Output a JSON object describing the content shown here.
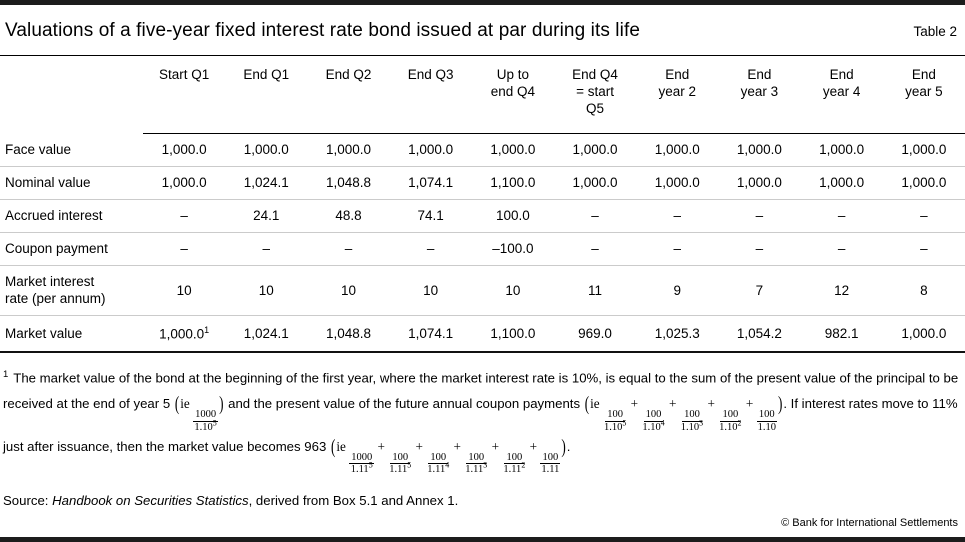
{
  "title": "Valuations of a five-year fixed interest rate bond issued at par during its life",
  "table_label": "Table 2",
  "table": {
    "columns": [
      "",
      "Start Q1",
      "End Q1",
      "End Q2",
      "End Q3",
      "Up to\nend Q4",
      "End Q4\n= start\nQ5",
      "End\nyear 2",
      "End\nyear 3",
      "End\nyear 4",
      "End\nyear 5"
    ],
    "rows": [
      {
        "label": "Face value",
        "cells": [
          "1,000.0",
          "1,000.0",
          "1,000.0",
          "1,000.0",
          "1,000.0",
          "1,000.0",
          "1,000.0",
          "1,000.0",
          "1,000.0",
          "1,000.0"
        ]
      },
      {
        "label": "Nominal value",
        "cells": [
          "1,000.0",
          "1,024.1",
          "1,048.8",
          "1,074.1",
          "1,100.0",
          "1,000.0",
          "1,000.0",
          "1,000.0",
          "1,000.0",
          "1,000.0"
        ]
      },
      {
        "label": "Accrued interest",
        "cells": [
          "–",
          "24.1",
          "48.8",
          "74.1",
          "100.0",
          "–",
          "–",
          "–",
          "–",
          "–"
        ]
      },
      {
        "label": "Coupon payment",
        "cells": [
          "–",
          "–",
          "–",
          "–",
          "–100.0",
          "–",
          "–",
          "–",
          "–",
          "–"
        ]
      },
      {
        "label": "Market interest\nrate (per annum)",
        "tall": true,
        "cells": [
          "10",
          "10",
          "10",
          "10",
          "10",
          "11",
          "9",
          "7",
          "12",
          "8"
        ]
      },
      {
        "label": "Market value",
        "last": true,
        "cells": [
          {
            "v": "1,000.0",
            "sup": "1"
          },
          "1,024.1",
          "1,048.8",
          "1,074.1",
          "1,100.0",
          "969.0",
          "1,025.3",
          "1,054.2",
          "982.1",
          "1,000.0"
        ]
      }
    ]
  },
  "footnote": {
    "marker": "1",
    "segments": [
      {
        "t": "x",
        "v": "The market value of the bond at the beginning of the first year, where the market interest rate is 10%, is equal to the sum of the present value of the principal to be received at the end of year 5 "
      },
      {
        "t": "lp"
      },
      {
        "t": "m",
        "v": "ie "
      },
      {
        "t": "f",
        "n": "1000",
        "d": "1.10",
        "e": "5"
      },
      {
        "t": "rp"
      },
      {
        "t": "x",
        "v": " and the present value of the future annual coupon payments "
      },
      {
        "t": "lp"
      },
      {
        "t": "m",
        "v": "ie "
      },
      {
        "t": "f",
        "n": "100",
        "d": "1.10",
        "e": "5"
      },
      {
        "t": "m",
        "v": " + "
      },
      {
        "t": "f",
        "n": "100",
        "d": "1.10",
        "e": "4"
      },
      {
        "t": "m",
        "v": " + "
      },
      {
        "t": "f",
        "n": "100",
        "d": "1.10",
        "e": "3"
      },
      {
        "t": "m",
        "v": " + "
      },
      {
        "t": "f",
        "n": "100",
        "d": "1.10",
        "e": "2"
      },
      {
        "t": "m",
        "v": " + "
      },
      {
        "t": "f",
        "n": "100",
        "d": "1.10"
      },
      {
        "t": "rp"
      },
      {
        "t": "x",
        "v": ". If interest rates move to 11% just after issuance, then the market value becomes 963 "
      },
      {
        "t": "lp"
      },
      {
        "t": "m",
        "v": "ie "
      },
      {
        "t": "f",
        "n": "1000",
        "d": "1.11",
        "e": "5"
      },
      {
        "t": "m",
        "v": " + "
      },
      {
        "t": "f",
        "n": "100",
        "d": "1.11",
        "e": "5"
      },
      {
        "t": "m",
        "v": " + "
      },
      {
        "t": "f",
        "n": "100",
        "d": "1.11",
        "e": "4"
      },
      {
        "t": "m",
        "v": " + "
      },
      {
        "t": "f",
        "n": "100",
        "d": "1.11",
        "e": "3"
      },
      {
        "t": "m",
        "v": " + "
      },
      {
        "t": "f",
        "n": "100",
        "d": "1.11",
        "e": "2"
      },
      {
        "t": "m",
        "v": " + "
      },
      {
        "t": "f",
        "n": "100",
        "d": "1.11"
      },
      {
        "t": "rp"
      },
      {
        "t": "x",
        "v": "."
      }
    ]
  },
  "source_segments": [
    {
      "t": "x",
      "v": "Source: "
    },
    {
      "t": "i",
      "v": "Handbook on Securities Statistics"
    },
    {
      "t": "x",
      "v": ", derived from Box 5.1 and Annex 1."
    }
  ],
  "copyright": "© Bank for International Settlements"
}
